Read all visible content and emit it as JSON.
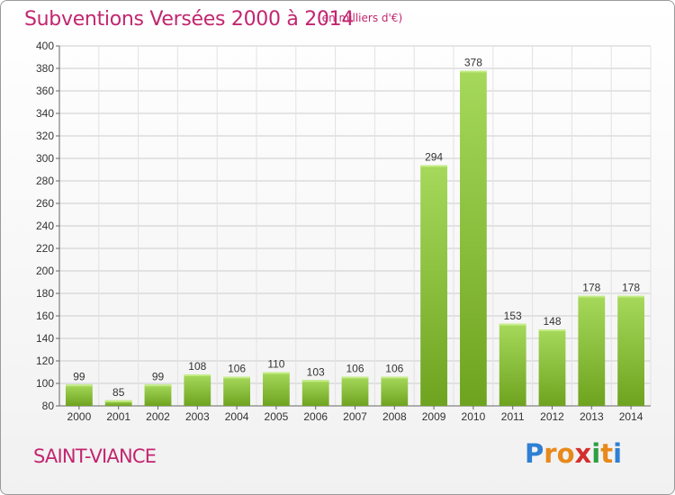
{
  "header": {
    "title": "Subventions Versées 2000 à 2014",
    "subtitle": "(en milliers d'€)"
  },
  "footer": {
    "commune": "SAINT-VIANCE",
    "logo": "Proxiti"
  },
  "colors": {
    "accent": "#c2266f",
    "bar_light": "#a6d95b",
    "bar_dark": "#6ea31f",
    "grid": "#cccccc",
    "logo_letters": [
      "#2f7fd4",
      "#e8891b",
      "#e8891b",
      "#d42f2f",
      "#2f9e44",
      "#e8891b",
      "#2f7fd4"
    ]
  },
  "chart_data": {
    "type": "bar",
    "categories": [
      "2000",
      "2001",
      "2002",
      "2003",
      "2004",
      "2005",
      "2006",
      "2007",
      "2008",
      "2009",
      "2010",
      "2011",
      "2012",
      "2013",
      "2014"
    ],
    "values": [
      99,
      85,
      99,
      108,
      106,
      110,
      103,
      106,
      106,
      294,
      378,
      153,
      148,
      178,
      178
    ],
    "ylim": [
      80,
      400
    ],
    "yticks": [
      80,
      100,
      120,
      140,
      160,
      180,
      200,
      220,
      240,
      260,
      280,
      300,
      320,
      340,
      360,
      380,
      400
    ],
    "grid": true,
    "data_labels": true
  }
}
